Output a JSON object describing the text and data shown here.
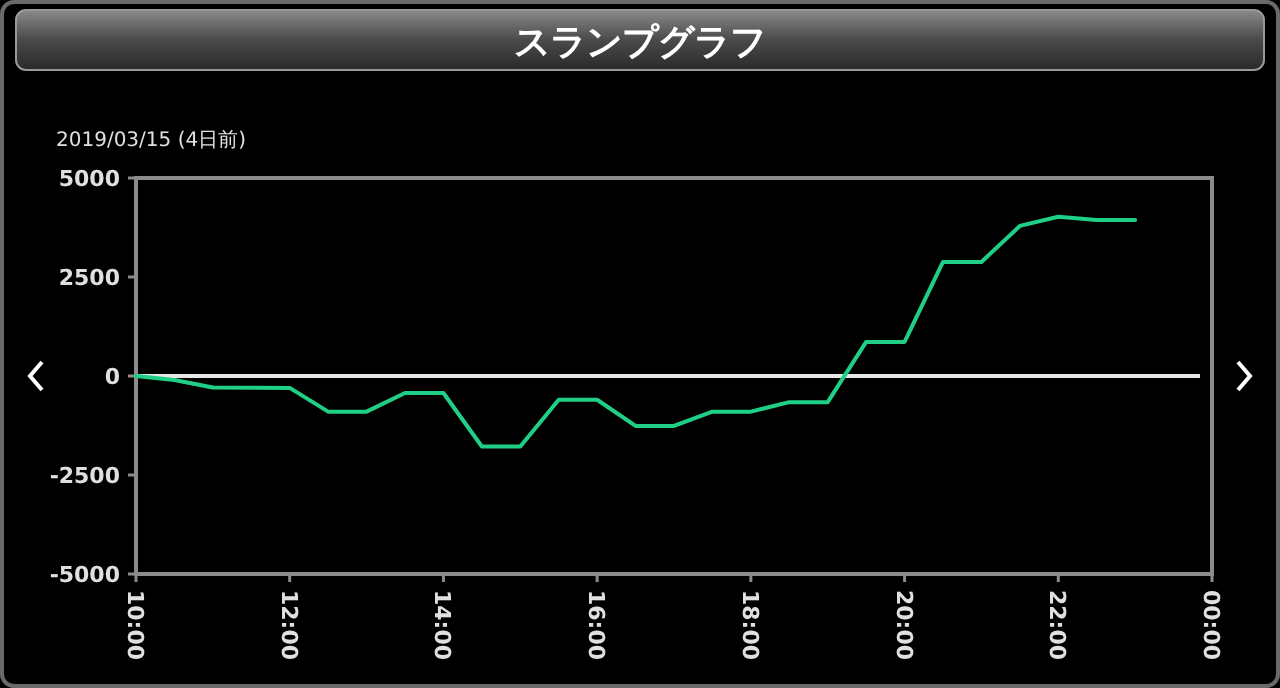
{
  "chart_data": {
    "type": "line",
    "title": "スランプグラフ",
    "subtitle": "2019/03/15 (4日前)",
    "x": [
      10,
      10.5,
      11,
      12,
      12.5,
      13,
      13.5,
      14,
      14.5,
      15,
      15.5,
      16,
      16.5,
      17,
      17.5,
      18,
      18.5,
      19,
      19.5,
      20,
      20.5,
      21,
      21.5,
      22,
      22.5,
      23
    ],
    "series": [
      {
        "color": "#1fcf85",
        "values": [
          0,
          -100,
          -290,
          -300,
          -900,
          -900,
          -430,
          -430,
          -1780,
          -1780,
          -600,
          -600,
          -1260,
          -1260,
          -900,
          -900,
          -660,
          -660,
          860,
          860,
          2880,
          2880,
          3790,
          4020,
          3940,
          3940
        ]
      }
    ],
    "xlim": [
      10,
      24
    ],
    "xticks": [
      {
        "value": 10,
        "label": "10:00"
      },
      {
        "value": 12,
        "label": "12:00"
      },
      {
        "value": 14,
        "label": "14:00"
      },
      {
        "value": 16,
        "label": "16:00"
      },
      {
        "value": 18,
        "label": "18:00"
      },
      {
        "value": 20,
        "label": "20:00"
      },
      {
        "value": 22,
        "label": "22:00"
      },
      {
        "value": 24,
        "label": "00:00"
      }
    ],
    "ylim": [
      -5000,
      5000
    ],
    "yticks": [
      5000,
      2500,
      0,
      -2500,
      -5000
    ],
    "ref_lines": [
      {
        "axis": "y",
        "value": 0,
        "color": "#e6e6e6"
      }
    ]
  }
}
